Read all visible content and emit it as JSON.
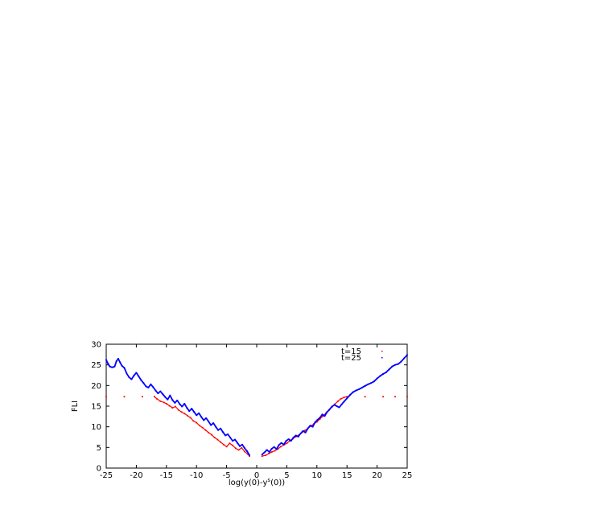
{
  "chart_data": {
    "type": "scatter",
    "title": "",
    "xlabel": "log(y(0)-y",
    "xlabel_sup": "s",
    "xlabel_tail": "(0))",
    "ylabel": "FLI",
    "xlim": [
      -25,
      25
    ],
    "ylim": [
      0,
      30
    ],
    "xticks": [
      -25,
      -20,
      -15,
      -10,
      -5,
      0,
      5,
      10,
      15,
      20,
      25
    ],
    "yticks": [
      0,
      5,
      10,
      15,
      20,
      25,
      30
    ],
    "grid": false,
    "legend_position": "top-right",
    "series": [
      {
        "name": "t=15",
        "color": "#ff0000",
        "points": [
          [
            -25,
            17.3
          ],
          [
            -22,
            17.3
          ],
          [
            -19,
            17.3
          ],
          [
            -17,
            17.3
          ],
          [
            -16.6,
            16.8
          ],
          [
            -16,
            16.2
          ],
          [
            -15.4,
            15.9
          ],
          [
            -15,
            15.6
          ],
          [
            -14.5,
            15.1
          ],
          [
            -14,
            14.6
          ],
          [
            -13.5,
            14.9
          ],
          [
            -13,
            14.1
          ],
          [
            -12.5,
            13.6
          ],
          [
            -12,
            13.2
          ],
          [
            -11.5,
            12.7
          ],
          [
            -11,
            12.2
          ],
          [
            -10.5,
            11.4
          ],
          [
            -10,
            11.0
          ],
          [
            -9.5,
            10.3
          ],
          [
            -9,
            9.8
          ],
          [
            -8.5,
            9.2
          ],
          [
            -8,
            8.6
          ],
          [
            -7.5,
            8.1
          ],
          [
            -7,
            7.4
          ],
          [
            -6.5,
            6.9
          ],
          [
            -6,
            6.3
          ],
          [
            -5.5,
            5.7
          ],
          [
            -5,
            5.2
          ],
          [
            -4.5,
            6.0
          ],
          [
            -4,
            5.5
          ],
          [
            -3.5,
            4.8
          ],
          [
            -3,
            4.4
          ],
          [
            -2.5,
            4.9
          ],
          [
            -2,
            4.0
          ],
          [
            -1.5,
            3.4
          ],
          [
            -1.2,
            2.9
          ],
          [
            0.9,
            2.9
          ],
          [
            1.5,
            3.1
          ],
          [
            2,
            3.5
          ],
          [
            2.5,
            3.9
          ],
          [
            3,
            4.2
          ],
          [
            3.5,
            4.6
          ],
          [
            4,
            5.2
          ],
          [
            4.5,
            5.6
          ],
          [
            5,
            6.0
          ],
          [
            5.5,
            6.6
          ],
          [
            6,
            7.1
          ],
          [
            6.5,
            7.6
          ],
          [
            7,
            8.0
          ],
          [
            7.5,
            8.6
          ],
          [
            8,
            9.1
          ],
          [
            8.5,
            9.6
          ],
          [
            9,
            10.2
          ],
          [
            9.5,
            10.7
          ],
          [
            10,
            11.2
          ],
          [
            10.5,
            11.9
          ],
          [
            11,
            12.6
          ],
          [
            11.5,
            13.3
          ],
          [
            12,
            14.0
          ],
          [
            12.5,
            14.8
          ],
          [
            13,
            15.5
          ],
          [
            13.5,
            16.2
          ],
          [
            14,
            16.8
          ],
          [
            14.5,
            17.1
          ],
          [
            15,
            17.3
          ],
          [
            18,
            17.3
          ],
          [
            21,
            17.3
          ],
          [
            23,
            17.3
          ],
          [
            25,
            17.3
          ]
        ]
      },
      {
        "name": "t=25",
        "color": "#0000ff",
        "points": [
          [
            -25,
            26.2
          ],
          [
            -24.7,
            25.3
          ],
          [
            -24.4,
            24.6
          ],
          [
            -24,
            24.4
          ],
          [
            -23.6,
            24.6
          ],
          [
            -23.3,
            25.9
          ],
          [
            -23,
            26.5
          ],
          [
            -22.7,
            25.6
          ],
          [
            -22.4,
            24.8
          ],
          [
            -22,
            24.3
          ],
          [
            -21.6,
            22.9
          ],
          [
            -21.2,
            22.0
          ],
          [
            -20.8,
            21.5
          ],
          [
            -20.4,
            22.4
          ],
          [
            -20,
            23.1
          ],
          [
            -19.6,
            22.2
          ],
          [
            -19.2,
            21.3
          ],
          [
            -18.8,
            20.6
          ],
          [
            -18.4,
            19.8
          ],
          [
            -18,
            19.5
          ],
          [
            -17.6,
            20.3
          ],
          [
            -17.2,
            19.6
          ],
          [
            -16.8,
            18.8
          ],
          [
            -16.4,
            18.1
          ],
          [
            -16,
            18.6
          ],
          [
            -15.6,
            17.9
          ],
          [
            -15.2,
            17.2
          ],
          [
            -14.8,
            16.6
          ],
          [
            -14.4,
            17.6
          ],
          [
            -14,
            16.5
          ],
          [
            -13.6,
            15.8
          ],
          [
            -13.2,
            16.4
          ],
          [
            -12.8,
            15.5
          ],
          [
            -12.4,
            14.9
          ],
          [
            -12,
            15.6
          ],
          [
            -11.6,
            14.6
          ],
          [
            -11.2,
            13.8
          ],
          [
            -10.8,
            14.4
          ],
          [
            -10.4,
            13.6
          ],
          [
            -10,
            12.8
          ],
          [
            -9.6,
            13.3
          ],
          [
            -9.2,
            12.4
          ],
          [
            -8.8,
            11.6
          ],
          [
            -8.4,
            12.1
          ],
          [
            -8,
            11.3
          ],
          [
            -7.6,
            10.4
          ],
          [
            -7.2,
            10.9
          ],
          [
            -6.8,
            10.0
          ],
          [
            -6.4,
            9.2
          ],
          [
            -6,
            9.6
          ],
          [
            -5.6,
            8.7
          ],
          [
            -5.2,
            7.9
          ],
          [
            -4.8,
            8.2
          ],
          [
            -4.4,
            7.4
          ],
          [
            -4,
            6.6
          ],
          [
            -3.6,
            6.9
          ],
          [
            -3.2,
            6.1
          ],
          [
            -2.8,
            5.3
          ],
          [
            -2.4,
            5.7
          ],
          [
            -2,
            4.8
          ],
          [
            -1.6,
            4.1
          ],
          [
            -1.2,
            3.1
          ],
          [
            0.9,
            3.3
          ],
          [
            1.3,
            3.8
          ],
          [
            1.7,
            4.4
          ],
          [
            2.1,
            3.9
          ],
          [
            2.5,
            4.7
          ],
          [
            2.9,
            5.1
          ],
          [
            3.3,
            4.6
          ],
          [
            3.7,
            5.6
          ],
          [
            4.1,
            6.1
          ],
          [
            4.5,
            5.7
          ],
          [
            4.9,
            6.6
          ],
          [
            5.3,
            7.0
          ],
          [
            5.7,
            6.6
          ],
          [
            6.1,
            7.4
          ],
          [
            6.5,
            7.9
          ],
          [
            6.9,
            7.6
          ],
          [
            7.3,
            8.4
          ],
          [
            7.7,
            9.0
          ],
          [
            8.1,
            8.6
          ],
          [
            8.5,
            9.6
          ],
          [
            8.9,
            10.3
          ],
          [
            9.3,
            10.0
          ],
          [
            9.7,
            11.1
          ],
          [
            10.1,
            11.7
          ],
          [
            10.5,
            12.2
          ],
          [
            10.9,
            13.0
          ],
          [
            11.3,
            12.6
          ],
          [
            11.7,
            13.6
          ],
          [
            12.1,
            14.2
          ],
          [
            12.5,
            14.9
          ],
          [
            12.9,
            15.3
          ],
          [
            13.3,
            15.0
          ],
          [
            13.7,
            14.7
          ],
          [
            14.1,
            15.4
          ],
          [
            14.5,
            16.1
          ],
          [
            15,
            16.9
          ],
          [
            15.5,
            17.7
          ],
          [
            16,
            18.4
          ],
          [
            16.5,
            18.8
          ],
          [
            17,
            19.1
          ],
          [
            17.5,
            19.5
          ],
          [
            18,
            19.9
          ],
          [
            18.5,
            20.3
          ],
          [
            19,
            20.6
          ],
          [
            19.5,
            21.0
          ],
          [
            20,
            21.7
          ],
          [
            20.5,
            22.3
          ],
          [
            21,
            22.8
          ],
          [
            21.5,
            23.2
          ],
          [
            22,
            23.9
          ],
          [
            22.5,
            24.6
          ],
          [
            23,
            25.0
          ],
          [
            23.5,
            25.2
          ],
          [
            24,
            25.8
          ],
          [
            24.5,
            26.6
          ],
          [
            25,
            27.4
          ]
        ]
      }
    ]
  }
}
